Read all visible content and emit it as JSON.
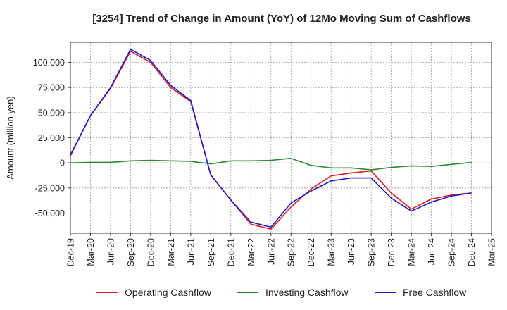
{
  "chart_data": {
    "type": "line",
    "title": "[3254]  Trend of Change in Amount (YoY) of 12Mo Moving Sum of Cashflows",
    "xlabel": "",
    "ylabel": "Amount (million yen)",
    "ylim": [
      -70000,
      120000
    ],
    "yticks": [
      -50000,
      -25000,
      0,
      25000,
      50000,
      75000,
      100000
    ],
    "ytick_labels": [
      "-50,000",
      "-25,000",
      "0",
      "25,000",
      "50,000",
      "75,000",
      "100,000"
    ],
    "categories": [
      "Dec-19",
      "Mar-20",
      "Jun-20",
      "Sep-20",
      "Dec-20",
      "Mar-21",
      "Jun-21",
      "Sep-21",
      "Dec-21",
      "Mar-22",
      "Jun-22",
      "Sep-22",
      "Dec-22",
      "Mar-23",
      "Jun-23",
      "Sep-23",
      "Dec-23",
      "Mar-24",
      "Jun-24",
      "Sep-24",
      "Dec-24",
      "Mar-25"
    ],
    "grid": true,
    "legend_position": "bottom",
    "series": [
      {
        "name": "Operating Cashflow",
        "color": "#e31a1c",
        "values": [
          7000,
          47000,
          74000,
          111000,
          100000,
          75000,
          61000,
          -12000,
          -37000,
          -61000,
          -66000,
          -44000,
          -26000,
          -13000,
          -10000,
          -8000,
          -30000,
          -46000,
          -36000,
          -32000,
          -30000,
          null
        ]
      },
      {
        "name": "Investing Cashflow",
        "color": "#2e8b2e",
        "values": [
          0,
          500,
          500,
          2000,
          2500,
          2000,
          1500,
          -1000,
          2000,
          2000,
          2500,
          4500,
          -2500,
          -5000,
          -5000,
          -7000,
          -4500,
          -3000,
          -3500,
          -1500,
          500,
          null
        ]
      },
      {
        "name": "Free Cashflow",
        "color": "#1a1acc",
        "values": [
          8000,
          47000,
          75000,
          113000,
          102000,
          77000,
          62000,
          -12000,
          -37000,
          -59000,
          -64000,
          -40000,
          -28000,
          -18000,
          -15000,
          -15000,
          -35000,
          -48000,
          -39000,
          -33000,
          -30000,
          null
        ]
      }
    ]
  }
}
